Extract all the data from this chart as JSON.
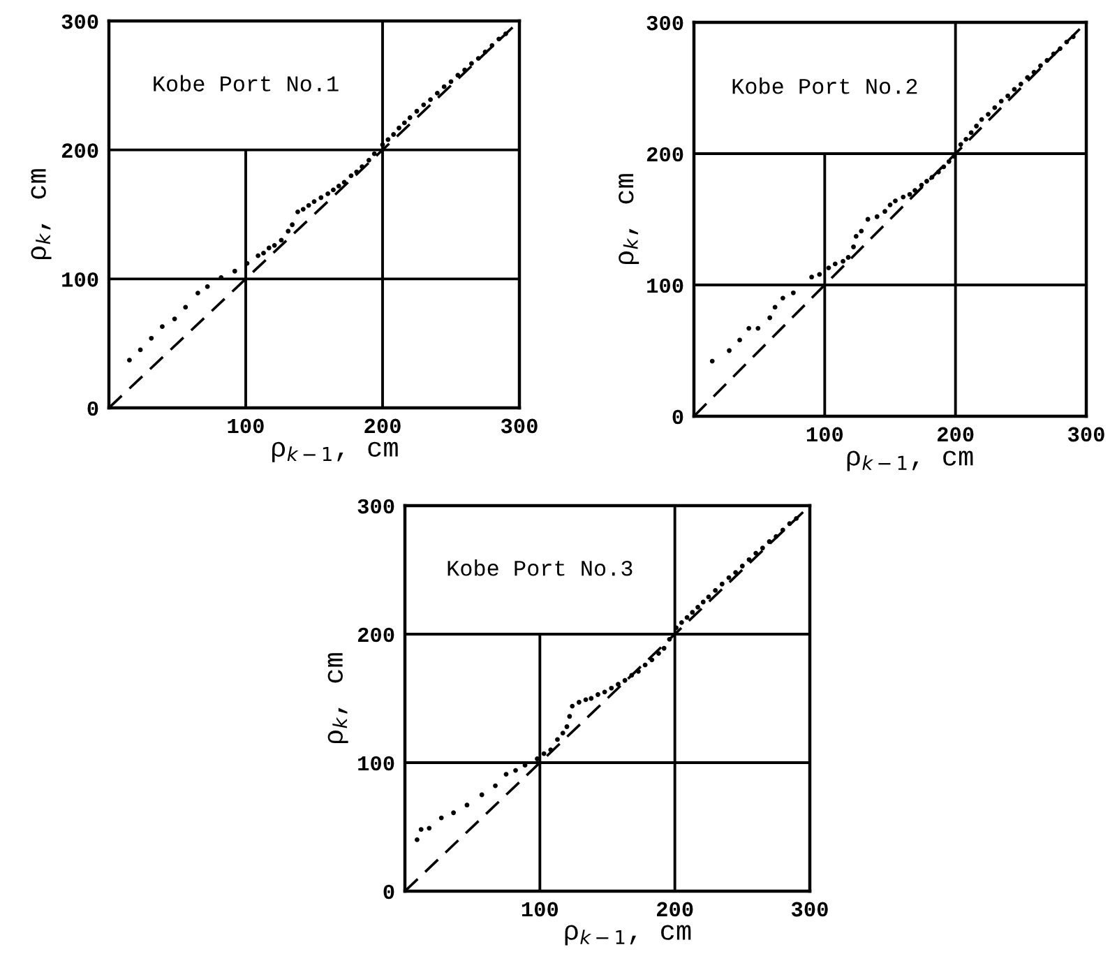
{
  "chart_data": [
    {
      "type": "scatter",
      "title": "Kobe Port No.1",
      "xlabel": "ρ$_{k−1}$, cm",
      "ylabel": "ρ$_{k}$, cm",
      "xlim": [
        0,
        300
      ],
      "ylim": [
        0,
        300
      ],
      "xticks": [
        100,
        200,
        300
      ],
      "yticks": [
        0,
        100,
        200,
        300
      ],
      "grid": true,
      "series": [
        {
          "color": "#000000",
          "marker": "circle",
          "x": [
            15,
            23,
            31,
            39,
            48,
            56,
            65,
            72,
            82,
            92,
            101,
            109,
            113,
            117,
            121,
            126,
            131,
            134,
            138,
            142,
            146,
            150,
            155,
            160,
            164,
            168,
            172,
            177,
            181,
            185,
            190,
            194,
            200,
            204,
            208,
            212,
            216,
            220,
            225,
            230,
            235,
            240,
            245,
            250,
            255,
            260,
            265,
            270,
            275,
            280,
            285,
            290
          ],
          "values": [
            37,
            45,
            54,
            63,
            69,
            78,
            89,
            94,
            101,
            106,
            112,
            118,
            120,
            124,
            126,
            130,
            137,
            142,
            152,
            154,
            157,
            160,
            163,
            166,
            169,
            172,
            175,
            180,
            183,
            187,
            192,
            197,
            204,
            208,
            212,
            217,
            221,
            225,
            230,
            235,
            239,
            244,
            249,
            253,
            258,
            262,
            267,
            271,
            276,
            281,
            286,
            290
          ]
        },
        {
          "type": "line",
          "color": "#000000",
          "line_style": "dashed",
          "x": [
            0,
            295
          ],
          "values": [
            0,
            295
          ]
        }
      ]
    },
    {
      "type": "scatter",
      "title": "Kobe Port No.2",
      "xlabel": "ρ$_{k−1}$, cm",
      "ylabel": "ρ$_{k}$, cm",
      "xlim": [
        0,
        300
      ],
      "ylim": [
        0,
        300
      ],
      "xticks": [
        100,
        200,
        300
      ],
      "yticks": [
        0,
        100,
        200,
        300
      ],
      "grid": true,
      "series": [
        {
          "color": "#000000",
          "marker": "circle",
          "x": [
            14,
            27,
            35,
            42,
            49,
            58,
            62,
            68,
            76,
            90,
            96,
            103,
            108,
            114,
            118,
            122,
            124,
            128,
            133,
            140,
            146,
            150,
            154,
            160,
            165,
            169,
            174,
            178,
            182,
            187,
            191,
            195,
            199,
            204,
            208,
            212,
            216,
            220,
            225,
            230,
            235,
            240,
            245,
            250,
            255,
            260,
            265,
            270,
            275,
            280,
            285,
            290
          ],
          "values": [
            42,
            50,
            58,
            67,
            67,
            75,
            83,
            90,
            94,
            106,
            108,
            113,
            116,
            118,
            121,
            129,
            137,
            141,
            150,
            152,
            156,
            161,
            164,
            167,
            169,
            172,
            176,
            179,
            182,
            186,
            190,
            194,
            198,
            207,
            211,
            216,
            221,
            226,
            230,
            235,
            240,
            244,
            249,
            253,
            258,
            262,
            267,
            271,
            276,
            280,
            285,
            289
          ]
        },
        {
          "type": "line",
          "color": "#000000",
          "line_style": "dashed",
          "x": [
            0,
            295
          ],
          "values": [
            0,
            295
          ]
        }
      ]
    },
    {
      "type": "scatter",
      "title": "Kobe Port No.3",
      "xlabel": "ρ$_{k−1}$, cm",
      "ylabel": "ρ$_{k}$, cm",
      "xlim": [
        0,
        300
      ],
      "ylim": [
        0,
        300
      ],
      "xticks": [
        100,
        200,
        300
      ],
      "yticks": [
        0,
        100,
        200,
        300
      ],
      "grid": true,
      "series": [
        {
          "color": "#000000",
          "marker": "circle",
          "x": [
            9,
            12,
            18,
            27,
            36,
            46,
            57,
            67,
            75,
            82,
            89,
            98,
            103,
            108,
            113,
            117,
            120,
            122,
            124,
            129,
            134,
            138,
            143,
            148,
            153,
            158,
            163,
            168,
            173,
            178,
            183,
            188,
            192,
            196,
            201,
            205,
            209,
            213,
            217,
            221,
            225,
            230,
            235,
            240,
            245,
            250,
            255,
            260,
            265,
            270,
            275,
            280,
            285,
            290
          ],
          "values": [
            40,
            48,
            49,
            57,
            61,
            67,
            75,
            82,
            91,
            94,
            98,
            103,
            107,
            110,
            118,
            123,
            128,
            136,
            144,
            147,
            149,
            150,
            153,
            155,
            158,
            161,
            164,
            168,
            171,
            176,
            180,
            185,
            189,
            196,
            205,
            209,
            213,
            217,
            221,
            225,
            229,
            234,
            239,
            244,
            248,
            253,
            258,
            263,
            267,
            272,
            276,
            281,
            286,
            290
          ]
        },
        {
          "type": "line",
          "color": "#000000",
          "line_style": "dashed",
          "x": [
            0,
            295
          ],
          "values": [
            0,
            295
          ]
        }
      ]
    }
  ]
}
